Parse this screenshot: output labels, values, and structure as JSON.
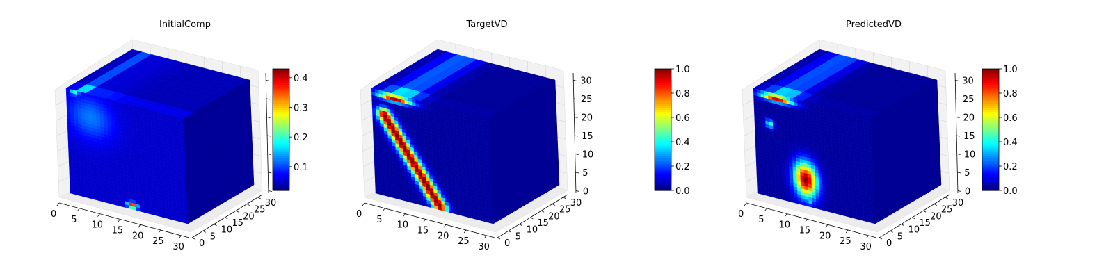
{
  "chart_data": [
    {
      "type": "heatmap",
      "title": "InitialComp",
      "x_ticks": [
        "0",
        "5",
        "10",
        "15",
        "20",
        "25",
        "30"
      ],
      "y_ticks": [
        "0",
        "5",
        "10",
        "15",
        "20",
        "25",
        "30"
      ],
      "z_ticks": [],
      "colormap": "jet",
      "colorbar": {
        "min": 0.02,
        "max": 0.43,
        "ticks": [
          "0.1",
          "0.2",
          "0.3",
          "0.4"
        ],
        "tick_values": [
          0.1,
          0.2,
          0.3,
          0.4
        ]
      },
      "front_face_blobs": [
        {
          "u": 0.2,
          "v": 0.78,
          "ru": 0.28,
          "rv": 0.3,
          "value": 0.12
        },
        {
          "u": 0.53,
          "v": 0.04,
          "ru": 0.06,
          "rv": 0.04,
          "value": 0.43
        },
        {
          "u": 0.07,
          "v": 0.98,
          "ru": 0.06,
          "rv": 0.04,
          "value": 0.2
        }
      ],
      "background_value": 0.05,
      "side_value": 0.03
    },
    {
      "type": "heatmap",
      "title": "TargetVD",
      "x_ticks": [
        "0",
        "5",
        "10",
        "15",
        "20",
        "25",
        "30"
      ],
      "y_ticks": [
        "0",
        "5",
        "10",
        "15",
        "20",
        "25",
        "30"
      ],
      "z_ticks": [
        "0",
        "5",
        "10",
        "15",
        "20",
        "25",
        "30"
      ],
      "colormap": "jet",
      "colorbar": {
        "min": 0.0,
        "max": 1.0,
        "ticks": [
          "0.0",
          "0.2",
          "0.4",
          "0.6",
          "0.8",
          "1.0"
        ],
        "tick_values": [
          0,
          0.2,
          0.4,
          0.6,
          0.8,
          1.0
        ]
      },
      "front_face_blobs": [
        {
          "u": 0.2,
          "v": 0.96,
          "ru": 0.21,
          "rv": 0.05,
          "value": 1.0
        },
        {
          "band": true,
          "u1": 0.1,
          "v1": 0.78,
          "u2": 0.55,
          "v2": 0.03,
          "w": 0.09,
          "value": 1.0
        }
      ],
      "background_value": 0.03,
      "side_value": 0.02
    },
    {
      "type": "heatmap",
      "title": "PredictedVD",
      "x_ticks": [
        "0",
        "5",
        "10",
        "15",
        "20",
        "25",
        "30"
      ],
      "y_ticks": [
        "0",
        "5",
        "10",
        "15",
        "20",
        "25",
        "30"
      ],
      "z_ticks": [
        "0",
        "5",
        "10",
        "15",
        "20",
        "25",
        "30"
      ],
      "colormap": "jet",
      "colorbar": {
        "min": 0.0,
        "max": 1.0,
        "ticks": [
          "0.0",
          "0.2",
          "0.4",
          "0.6",
          "0.8",
          "1.0"
        ],
        "tick_values": [
          0,
          0.2,
          0.4,
          0.6,
          0.8,
          1.0
        ]
      },
      "front_face_blobs": [
        {
          "u": 0.2,
          "v": 0.96,
          "ru": 0.2,
          "rv": 0.05,
          "value": 0.95
        },
        {
          "u": 0.13,
          "v": 0.7,
          "ru": 0.05,
          "rv": 0.06,
          "value": 0.45
        },
        {
          "u": 0.42,
          "v": 0.25,
          "ru": 0.14,
          "rv": 0.24,
          "value": 1.0
        },
        {
          "u": 0.45,
          "v": 0.04,
          "ru": 0.05,
          "rv": 0.04,
          "value": 0.35
        }
      ],
      "background_value": 0.03,
      "side_value": 0.02
    }
  ]
}
